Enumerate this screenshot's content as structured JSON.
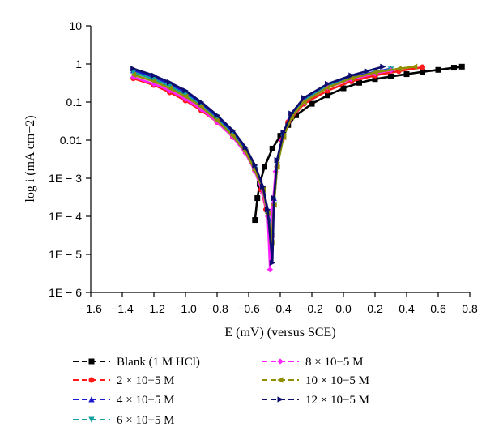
{
  "chart_data": {
    "type": "line",
    "title": "",
    "xlabel": "E (mV) (versus SCE)",
    "ylabel": "log i (mA cm−2)",
    "x_scale": "linear",
    "y_scale": "log",
    "xlim": [
      -1.6,
      0.8
    ],
    "ylim": [
      1e-06,
      10
    ],
    "x_ticks": [
      "−1.6",
      "−1.4",
      "−1.2",
      "−1.0",
      "−0.8",
      "−0.6",
      "−0.4",
      "−0.2",
      "0.0",
      "0.2",
      "0.4",
      "0.6",
      "0.8"
    ],
    "y_ticks": [
      "10",
      "1",
      "0.1",
      "0.01",
      "1E − 3",
      "1E − 4",
      "1E − 5",
      "1E − 6"
    ],
    "grid": false,
    "legend_position": "bottom",
    "series": [
      {
        "name": "Blank (1 M HCl)",
        "color": "#000000",
        "marker": "square",
        "points": [
          [
            -0.56,
            8e-05
          ],
          [
            -0.545,
            0.0003
          ],
          [
            -0.53,
            0.0007
          ],
          [
            -0.5,
            0.002
          ],
          [
            -0.45,
            0.006
          ],
          [
            -0.4,
            0.013
          ],
          [
            -0.35,
            0.025
          ],
          [
            -0.3,
            0.045
          ],
          [
            -0.2,
            0.09
          ],
          [
            -0.1,
            0.15
          ],
          [
            0.0,
            0.23
          ],
          [
            0.1,
            0.32
          ],
          [
            0.2,
            0.4
          ],
          [
            0.3,
            0.47
          ],
          [
            0.4,
            0.54
          ],
          [
            0.5,
            0.62
          ],
          [
            0.6,
            0.7
          ],
          [
            0.7,
            0.8
          ],
          [
            0.75,
            0.85
          ]
        ]
      },
      {
        "name": "2 × 10−5 M",
        "color": "#ff1a1a",
        "marker": "circle",
        "points": [
          [
            -1.33,
            0.42
          ],
          [
            -1.2,
            0.28
          ],
          [
            -1.1,
            0.18
          ],
          [
            -1.0,
            0.11
          ],
          [
            -0.9,
            0.06
          ],
          [
            -0.8,
            0.03
          ],
          [
            -0.7,
            0.012
          ],
          [
            -0.62,
            0.005
          ],
          [
            -0.56,
            0.0016
          ],
          [
            -0.52,
            0.0005
          ],
          [
            -0.49,
            0.00015
          ],
          [
            -0.465,
            5e-05
          ],
          [
            -0.455,
            3e-05
          ],
          [
            -0.44,
            0.0002
          ],
          [
            -0.42,
            0.002
          ],
          [
            -0.39,
            0.01
          ],
          [
            -0.35,
            0.03
          ],
          [
            -0.25,
            0.09
          ],
          [
            -0.1,
            0.2
          ],
          [
            0.05,
            0.35
          ],
          [
            0.2,
            0.5
          ],
          [
            0.35,
            0.65
          ],
          [
            0.5,
            0.82
          ]
        ]
      },
      {
        "name": "4 × 10−5 M",
        "color": "#1a1acc",
        "marker": "triangle-up",
        "points": [
          [
            -1.33,
            0.68
          ],
          [
            -1.2,
            0.45
          ],
          [
            -1.1,
            0.3
          ],
          [
            -1.0,
            0.18
          ],
          [
            -0.9,
            0.09
          ],
          [
            -0.8,
            0.04
          ],
          [
            -0.7,
            0.016
          ],
          [
            -0.62,
            0.006
          ],
          [
            -0.56,
            0.002
          ],
          [
            -0.51,
            0.0006
          ],
          [
            -0.48,
            0.00015
          ],
          [
            -0.455,
            4e-05
          ],
          [
            -0.44,
            0.0003
          ],
          [
            -0.42,
            0.003
          ],
          [
            -0.38,
            0.015
          ],
          [
            -0.33,
            0.045
          ],
          [
            -0.25,
            0.12
          ],
          [
            -0.1,
            0.28
          ],
          [
            0.05,
            0.45
          ],
          [
            0.2,
            0.62
          ],
          [
            0.3,
            0.75
          ]
        ]
      },
      {
        "name": "6 × 10−5 M",
        "color": "#11a0a0",
        "marker": "triangle-down",
        "points": [
          [
            -1.33,
            0.6
          ],
          [
            -1.2,
            0.4
          ],
          [
            -1.1,
            0.26
          ],
          [
            -1.0,
            0.16
          ],
          [
            -0.9,
            0.08
          ],
          [
            -0.8,
            0.035
          ],
          [
            -0.7,
            0.014
          ],
          [
            -0.62,
            0.005
          ],
          [
            -0.56,
            0.0017
          ],
          [
            -0.51,
            0.0005
          ],
          [
            -0.48,
            0.00012
          ],
          [
            -0.455,
            3e-05
          ],
          [
            -0.44,
            0.0002
          ],
          [
            -0.42,
            0.002
          ],
          [
            -0.38,
            0.012
          ],
          [
            -0.33,
            0.04
          ],
          [
            -0.25,
            0.11
          ],
          [
            -0.1,
            0.26
          ],
          [
            0.05,
            0.42
          ],
          [
            0.2,
            0.6
          ],
          [
            0.3,
            0.72
          ]
        ]
      },
      {
        "name": "8 × 10−5 M",
        "color": "#ff22ff",
        "marker": "diamond",
        "points": [
          [
            -1.33,
            0.45
          ],
          [
            -1.2,
            0.3
          ],
          [
            -1.1,
            0.2
          ],
          [
            -1.0,
            0.12
          ],
          [
            -0.9,
            0.065
          ],
          [
            -0.8,
            0.03
          ],
          [
            -0.7,
            0.012
          ],
          [
            -0.62,
            0.0045
          ],
          [
            -0.56,
            0.0015
          ],
          [
            -0.51,
            0.0004
          ],
          [
            -0.48,
            0.0001
          ],
          [
            -0.465,
            4e-06
          ],
          [
            -0.45,
            0.00015
          ],
          [
            -0.43,
            0.0015
          ],
          [
            -0.39,
            0.01
          ],
          [
            -0.34,
            0.035
          ],
          [
            -0.25,
            0.1
          ],
          [
            -0.1,
            0.24
          ],
          [
            0.05,
            0.4
          ],
          [
            0.2,
            0.56
          ],
          [
            0.3,
            0.68
          ]
        ]
      },
      {
        "name": "10 × 10−5 M",
        "color": "#8f8f00",
        "marker": "triangle-left",
        "points": [
          [
            -1.33,
            0.52
          ],
          [
            -1.2,
            0.35
          ],
          [
            -1.1,
            0.23
          ],
          [
            -1.0,
            0.14
          ],
          [
            -0.9,
            0.075
          ],
          [
            -0.8,
            0.033
          ],
          [
            -0.7,
            0.013
          ],
          [
            -0.62,
            0.005
          ],
          [
            -0.56,
            0.0016
          ],
          [
            -0.51,
            0.0005
          ],
          [
            -0.48,
            0.00012
          ],
          [
            -0.455,
            2e-05
          ],
          [
            -0.44,
            0.0002
          ],
          [
            -0.42,
            0.002
          ],
          [
            -0.38,
            0.012
          ],
          [
            -0.33,
            0.04
          ],
          [
            -0.25,
            0.1
          ],
          [
            -0.1,
            0.24
          ],
          [
            0.05,
            0.42
          ],
          [
            0.2,
            0.6
          ],
          [
            0.35,
            0.75
          ],
          [
            0.45,
            0.85
          ]
        ]
      },
      {
        "name": "12 × 10−5 M",
        "color": "#0d0d6e",
        "marker": "triangle-right",
        "points": [
          [
            -1.33,
            0.75
          ],
          [
            -1.2,
            0.5
          ],
          [
            -1.1,
            0.33
          ],
          [
            -1.0,
            0.2
          ],
          [
            -0.9,
            0.1
          ],
          [
            -0.8,
            0.045
          ],
          [
            -0.7,
            0.018
          ],
          [
            -0.62,
            0.0065
          ],
          [
            -0.56,
            0.0022
          ],
          [
            -0.51,
            0.0006
          ],
          [
            -0.48,
            0.00015
          ],
          [
            -0.45,
            6e-06
          ],
          [
            -0.44,
            0.0003
          ],
          [
            -0.42,
            0.003
          ],
          [
            -0.38,
            0.016
          ],
          [
            -0.33,
            0.05
          ],
          [
            -0.25,
            0.13
          ],
          [
            -0.1,
            0.3
          ],
          [
            0.05,
            0.5
          ],
          [
            0.15,
            0.65
          ],
          [
            0.25,
            0.85
          ]
        ]
      }
    ]
  }
}
